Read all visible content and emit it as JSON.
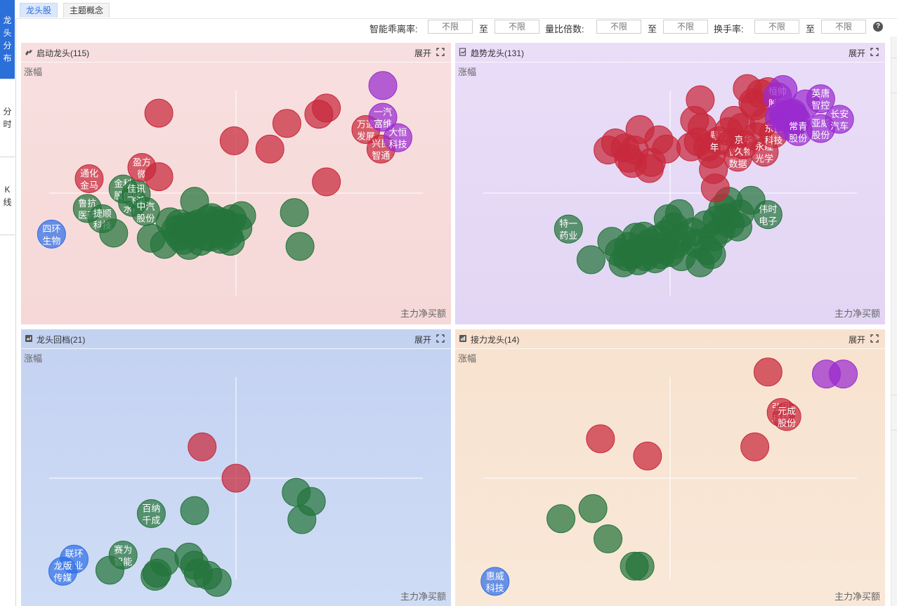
{
  "side_tabs": [
    {
      "label": "龙头分布",
      "active": true
    },
    {
      "label": "分时",
      "active": false
    },
    {
      "label": "K线",
      "active": false
    }
  ],
  "top_tabs": [
    {
      "label": "龙头股",
      "active": true
    },
    {
      "label": "主题概念",
      "active": false
    }
  ],
  "filters": {
    "smart_deviation_label": "智能乖离率:",
    "volume_ratio_label": "量比倍数:",
    "turnover_label": "换手率:",
    "to_label": "至",
    "placeholder": "不限"
  },
  "help_icon": "question-circle-icon",
  "colors": {
    "red": "#c8283c",
    "green": "#24743c",
    "purple": "#9a2bcf",
    "blue": "#2f6fe8",
    "panel_start": "#f8dcdc",
    "panel_trend": "#e4d8f6",
    "panel_pullback": "#c9d6f3",
    "panel_relay": "#f9e4d0"
  },
  "panels": {
    "start": {
      "title": "启动龙头(115)",
      "expand": "展开",
      "y_label": "涨幅",
      "x_label": "主力净买额",
      "icon": "dragon-icon"
    },
    "trend": {
      "title": "趋势龙头(131)",
      "expand": "展开",
      "y_label": "涨幅",
      "x_label": "主力净买额",
      "icon": "trend-doc-icon"
    },
    "pullback": {
      "title": "龙头回档(21)",
      "expand": "展开",
      "y_label": "涨幅",
      "x_label": "主力净买额",
      "icon": "return-arrow-icon"
    },
    "relay": {
      "title": "接力龙头(14)",
      "expand": "展开",
      "y_label": "涨幅",
      "x_label": "主力净买额",
      "icon": "relay-chart-icon"
    }
  },
  "chart_data": [
    {
      "type": "scatter",
      "title": "启动龙头(115)",
      "xlabel": "主力净买额",
      "ylabel": "涨幅",
      "xlim": [
        -1,
        1
      ],
      "ylim": [
        -1,
        1
      ],
      "series": [],
      "points": [
        [
          -0.98,
          -0.4,
          "b",
          "四环生物"
        ],
        [
          -0.79,
          -0.15,
          "g",
          "鲁抗医药"
        ],
        [
          -0.71,
          -0.25,
          "g",
          "捷顺科技"
        ],
        [
          -0.6,
          0.04,
          "g",
          "金科股份"
        ],
        [
          -0.55,
          -0.09,
          "g",
          "国联水产"
        ],
        [
          -0.53,
          -0.01,
          "g",
          "佳讯飞鸿"
        ],
        [
          -0.48,
          -0.18,
          "g",
          "中汽股份"
        ],
        [
          -0.22,
          -0.08,
          "g",
          ""
        ],
        [
          -0.65,
          -0.39,
          "g",
          ""
        ],
        [
          -0.45,
          -0.44,
          "g",
          ""
        ],
        [
          -0.38,
          -0.5,
          "g",
          ""
        ],
        [
          -0.35,
          -0.28,
          "g",
          ""
        ],
        [
          -0.32,
          -0.36,
          "g",
          ""
        ],
        [
          -0.3,
          -0.42,
          "g",
          ""
        ],
        [
          -0.28,
          -0.46,
          "g",
          ""
        ],
        [
          -0.27,
          -0.33,
          "g",
          ""
        ],
        [
          -0.25,
          -0.51,
          "g",
          ""
        ],
        [
          -0.22,
          -0.4,
          "g",
          ""
        ],
        [
          -0.2,
          -0.3,
          "g",
          ""
        ],
        [
          -0.19,
          -0.47,
          "g",
          ""
        ],
        [
          -0.17,
          -0.35,
          "g",
          ""
        ],
        [
          -0.15,
          -0.26,
          "g",
          ""
        ],
        [
          -0.14,
          -0.43,
          "g",
          ""
        ],
        [
          -0.12,
          -0.32,
          "g",
          ""
        ],
        [
          -0.11,
          -0.39,
          "g",
          ""
        ],
        [
          -0.1,
          -0.27,
          "g",
          ""
        ],
        [
          -0.08,
          -0.45,
          "g",
          ""
        ],
        [
          -0.06,
          -0.36,
          "g",
          ""
        ],
        [
          -0.05,
          -0.3,
          "g",
          ""
        ],
        [
          -0.03,
          -0.47,
          "g",
          ""
        ],
        [
          -0.02,
          -0.25,
          "g",
          ""
        ],
        [
          0.01,
          -0.34,
          "g",
          ""
        ],
        [
          0.03,
          -0.22,
          "g",
          ""
        ],
        [
          -0.18,
          -0.37,
          "g",
          ""
        ],
        [
          -0.26,
          -0.37,
          "g",
          ""
        ],
        [
          -0.09,
          -0.34,
          "g",
          ""
        ],
        [
          -0.13,
          -0.24,
          "g",
          ""
        ],
        [
          -0.23,
          -0.32,
          "g",
          ""
        ],
        [
          -0.04,
          -0.41,
          "g",
          ""
        ],
        [
          -0.16,
          -0.42,
          "g",
          ""
        ],
        [
          -0.3,
          -0.3,
          "g",
          ""
        ],
        [
          -0.07,
          -0.29,
          "g",
          ""
        ],
        [
          0.31,
          -0.19,
          "g",
          ""
        ],
        [
          0.34,
          -0.52,
          "g",
          ""
        ],
        [
          -0.78,
          0.14,
          "r",
          "通化金马"
        ],
        [
          -0.5,
          0.25,
          "r",
          "盈方微"
        ],
        [
          -0.41,
          0.16,
          "r",
          ""
        ],
        [
          -0.41,
          0.78,
          "r",
          ""
        ],
        [
          -0.01,
          0.51,
          "r",
          ""
        ],
        [
          0.18,
          0.43,
          "r",
          ""
        ],
        [
          0.27,
          0.68,
          "r",
          ""
        ],
        [
          0.44,
          0.77,
          "r",
          ""
        ],
        [
          0.48,
          0.83,
          "r",
          ""
        ],
        [
          0.48,
          0.11,
          "r",
          ""
        ],
        [
          0.69,
          0.62,
          "r",
          "万通发展"
        ],
        [
          0.77,
          0.43,
          "r",
          "兴民智通"
        ],
        [
          0.78,
          0.74,
          "p",
          "一汽富维"
        ],
        [
          0.86,
          0.54,
          "p",
          "大恒科技"
        ],
        [
          0.78,
          1.05,
          "p",
          ""
        ]
      ]
    },
    {
      "type": "scatter",
      "title": "趋势龙头(131)",
      "xlabel": "主力净买额",
      "ylabel": "涨幅",
      "xlim": [
        -1,
        1
      ],
      "ylim": [
        -1,
        1
      ],
      "series": [],
      "points": [
        [
          -0.54,
          -0.35,
          "g",
          "特一药业"
        ],
        [
          -0.42,
          -0.65,
          "g",
          ""
        ],
        [
          -0.31,
          -0.47,
          "g",
          ""
        ],
        [
          -0.27,
          -0.58,
          "g",
          ""
        ],
        [
          -0.25,
          -0.68,
          "g",
          ""
        ],
        [
          -0.22,
          -0.52,
          "g",
          ""
        ],
        [
          -0.2,
          -0.6,
          "g",
          ""
        ],
        [
          -0.18,
          -0.43,
          "g",
          ""
        ],
        [
          -0.17,
          -0.66,
          "g",
          ""
        ],
        [
          -0.15,
          -0.55,
          "g",
          ""
        ],
        [
          -0.13,
          -0.62,
          "g",
          ""
        ],
        [
          -0.11,
          -0.49,
          "g",
          ""
        ],
        [
          -0.1,
          -0.57,
          "g",
          ""
        ],
        [
          -0.08,
          -0.64,
          "g",
          ""
        ],
        [
          -0.07,
          -0.45,
          "g",
          ""
        ],
        [
          -0.05,
          -0.6,
          "g",
          ""
        ],
        [
          -0.04,
          -0.53,
          "g",
          ""
        ],
        [
          -0.02,
          -0.4,
          "g",
          ""
        ],
        [
          0.0,
          -0.58,
          "g",
          ""
        ],
        [
          0.02,
          -0.33,
          "g",
          ""
        ],
        [
          0.03,
          -0.5,
          "g",
          ""
        ],
        [
          -0.01,
          -0.25,
          "g",
          ""
        ],
        [
          0.05,
          -0.2,
          "g",
          ""
        ],
        [
          0.06,
          -0.44,
          "g",
          ""
        ],
        [
          -0.19,
          -0.58,
          "g",
          ""
        ],
        [
          -0.14,
          -0.42,
          "g",
          ""
        ],
        [
          -0.23,
          -0.62,
          "g",
          ""
        ],
        [
          0.06,
          -0.62,
          "g",
          ""
        ],
        [
          0.12,
          -0.38,
          "g",
          ""
        ],
        [
          0.14,
          -0.49,
          "g",
          ""
        ],
        [
          0.16,
          -0.68,
          "g",
          ""
        ],
        [
          0.19,
          -0.31,
          "g",
          ""
        ],
        [
          0.2,
          -0.56,
          "g",
          ""
        ],
        [
          0.22,
          -0.6,
          "g",
          ""
        ],
        [
          0.23,
          -0.43,
          "g",
          ""
        ],
        [
          0.25,
          -0.26,
          "g",
          ""
        ],
        [
          0.27,
          -0.36,
          "g",
          ""
        ],
        [
          0.28,
          -0.15,
          "g",
          ""
        ],
        [
          0.3,
          -0.24,
          "g",
          ""
        ],
        [
          0.31,
          -0.08,
          "g",
          ""
        ],
        [
          0.32,
          -0.3,
          "g",
          ""
        ],
        [
          0.36,
          -0.33,
          "g",
          ""
        ],
        [
          0.37,
          -0.2,
          "g",
          ""
        ],
        [
          0.43,
          -0.07,
          "g",
          ""
        ],
        [
          0.52,
          -0.21,
          "g",
          "伟时电子"
        ],
        [
          -0.33,
          0.42,
          "r",
          ""
        ],
        [
          -0.29,
          0.49,
          "r",
          ""
        ],
        [
          -0.24,
          0.44,
          "r",
          ""
        ],
        [
          -0.22,
          0.34,
          "r",
          ""
        ],
        [
          -0.2,
          0.29,
          "r",
          ""
        ],
        [
          -0.19,
          0.42,
          "r",
          ""
        ],
        [
          -0.16,
          0.62,
          "r",
          ""
        ],
        [
          -0.11,
          0.24,
          "r",
          ""
        ],
        [
          -0.1,
          0.3,
          "r",
          ""
        ],
        [
          -0.06,
          0.52,
          "r",
          ""
        ],
        [
          -0.02,
          0.43,
          "r",
          ""
        ],
        [
          0.11,
          0.45,
          "r",
          ""
        ],
        [
          0.13,
          0.71,
          "r",
          ""
        ],
        [
          0.16,
          0.91,
          "r",
          ""
        ],
        [
          0.15,
          0.5,
          "r",
          ""
        ],
        [
          0.17,
          0.64,
          "r",
          ""
        ],
        [
          0.2,
          0.45,
          "r",
          ""
        ],
        [
          0.22,
          0.38,
          "r",
          ""
        ],
        [
          0.23,
          0.23,
          "r",
          ""
        ],
        [
          0.24,
          0.05,
          "r",
          ""
        ],
        [
          0.26,
          0.51,
          "r",
          "粤万年青"
        ],
        [
          0.31,
          0.6,
          "r",
          ""
        ],
        [
          0.33,
          0.49,
          "r",
          ""
        ],
        [
          0.34,
          0.71,
          "r",
          ""
        ],
        [
          0.36,
          0.35,
          "r",
          "协创数据"
        ],
        [
          0.38,
          0.64,
          "r",
          ""
        ],
        [
          0.39,
          0.47,
          "r",
          "京华久物"
        ],
        [
          0.41,
          1.02,
          "r",
          ""
        ],
        [
          0.44,
          0.88,
          "r",
          ""
        ],
        [
          0.45,
          0.85,
          "r",
          ""
        ],
        [
          0.46,
          0.55,
          "r",
          ""
        ],
        [
          0.48,
          0.97,
          "r",
          ""
        ],
        [
          0.5,
          0.69,
          "r",
          ""
        ],
        [
          0.5,
          0.4,
          "r",
          "永瞳光学"
        ],
        [
          0.52,
          0.99,
          "r",
          ""
        ],
        [
          0.55,
          0.58,
          "r",
          "东箭科技"
        ],
        [
          0.57,
          0.94,
          "p",
          "恒帅股份"
        ],
        [
          0.58,
          0.74,
          "p",
          ""
        ],
        [
          0.6,
          0.77,
          "p",
          ""
        ],
        [
          0.61,
          0.74,
          "p",
          ""
        ],
        [
          0.62,
          0.76,
          "p",
          ""
        ],
        [
          0.63,
          0.73,
          "p",
          ""
        ],
        [
          0.64,
          0.77,
          "p",
          ""
        ],
        [
          0.64,
          0.65,
          "p",
          ""
        ],
        [
          0.65,
          0.78,
          "p",
          ""
        ],
        [
          0.66,
          0.74,
          "p",
          ""
        ],
        [
          0.67,
          0.71,
          "p",
          ""
        ],
        [
          0.6,
          1.01,
          "p",
          ""
        ],
        [
          0.68,
          0.6,
          "p",
          "常青股份"
        ],
        [
          0.72,
          0.87,
          "p",
          ""
        ],
        [
          0.8,
          0.92,
          "p",
          "英唐智控"
        ],
        [
          0.8,
          0.63,
          "p",
          "亚威股份"
        ],
        [
          0.9,
          0.72,
          "p",
          "长安汽车"
        ]
      ]
    },
    {
      "type": "scatter",
      "title": "龙头回档(21)",
      "xlabel": "主力净买额",
      "ylabel": "涨幅",
      "xlim": [
        -1,
        1
      ],
      "ylim": [
        -1,
        1
      ],
      "series": [],
      "points": [
        [
          -0.18,
          0.31,
          "r",
          ""
        ],
        [
          0.0,
          0.0,
          "r",
          ""
        ],
        [
          -0.45,
          -0.35,
          "g",
          "百纳千成"
        ],
        [
          -0.22,
          -0.32,
          "g",
          ""
        ],
        [
          0.32,
          -0.14,
          "g",
          ""
        ],
        [
          0.4,
          -0.23,
          "g",
          ""
        ],
        [
          0.35,
          -0.41,
          "g",
          ""
        ],
        [
          -0.6,
          -0.76,
          "g",
          "赛为智能"
        ],
        [
          -0.67,
          -0.91,
          "g",
          ""
        ],
        [
          -0.38,
          -0.83,
          "g",
          ""
        ],
        [
          -0.42,
          -0.94,
          "g",
          ""
        ],
        [
          -0.43,
          -0.97,
          "g",
          ""
        ],
        [
          -0.25,
          -0.78,
          "g",
          ""
        ],
        [
          -0.22,
          -0.86,
          "g",
          ""
        ],
        [
          -0.2,
          -0.94,
          "g",
          ""
        ],
        [
          -0.15,
          -0.96,
          "g",
          ""
        ],
        [
          -0.1,
          -1.03,
          "g",
          ""
        ],
        [
          -0.86,
          -0.8,
          "b",
          "联环药业"
        ],
        [
          -0.92,
          -0.92,
          "b",
          "龙版传媒"
        ]
      ]
    },
    {
      "type": "scatter",
      "title": "接力龙头(14)",
      "xlabel": "主力净买额",
      "ylabel": "涨幅",
      "xlim": [
        -1,
        1
      ],
      "ylim": [
        -1,
        1
      ],
      "series": [],
      "points": [
        [
          0.52,
          1.05,
          "r",
          ""
        ],
        [
          0.59,
          0.65,
          "r",
          "弘讯科技"
        ],
        [
          0.62,
          0.61,
          "r",
          "元成股份"
        ],
        [
          0.45,
          0.31,
          "r",
          ""
        ],
        [
          -0.37,
          0.39,
          "r",
          ""
        ],
        [
          -0.12,
          0.22,
          "r",
          ""
        ],
        [
          0.83,
          1.03,
          "p",
          ""
        ],
        [
          0.92,
          1.03,
          "p",
          ""
        ],
        [
          -0.41,
          -0.3,
          "g",
          ""
        ],
        [
          -0.58,
          -0.4,
          "g",
          ""
        ],
        [
          -0.33,
          -0.6,
          "g",
          ""
        ],
        [
          -0.19,
          -0.87,
          "g",
          ""
        ],
        [
          -0.16,
          -0.87,
          "g",
          ""
        ],
        [
          -0.93,
          -1.02,
          "b",
          "惠威科技"
        ]
      ]
    }
  ]
}
